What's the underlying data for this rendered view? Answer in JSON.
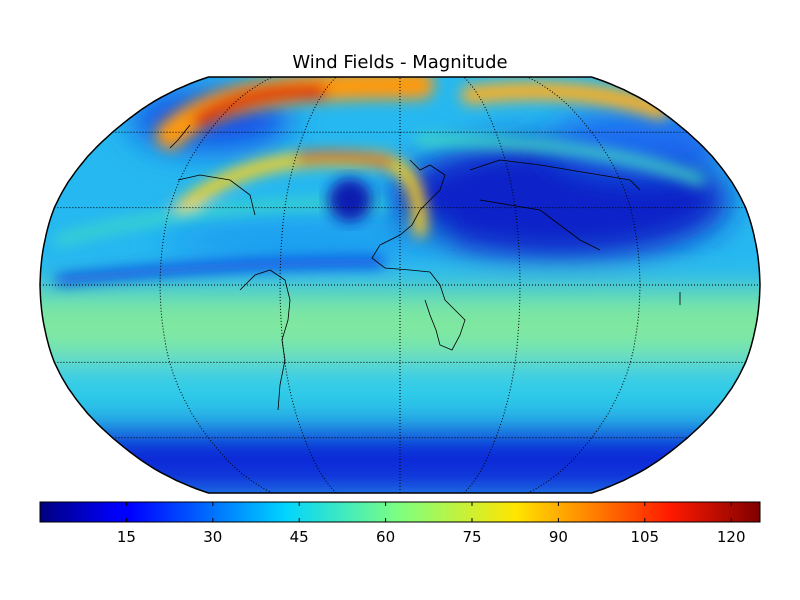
{
  "title": "Wind Fields - Magnitude",
  "map": {
    "projection": "robinson",
    "field": "wind magnitude",
    "graticule": {
      "parallels_deg": [
        -60,
        -30,
        0,
        30,
        60
      ],
      "meridians_deg": [
        -120,
        -60,
        0,
        60,
        120
      ],
      "style": "dotted"
    },
    "colormap": "jet"
  },
  "colorbar": {
    "orientation": "horizontal",
    "min": 0,
    "max": 125,
    "tick_values": [
      15,
      30,
      45,
      60,
      75,
      90,
      105,
      120
    ],
    "tick_labels": [
      "15",
      "30",
      "45",
      "60",
      "75",
      "90",
      "105",
      "120"
    ]
  },
  "colors": {
    "low": "#00007f",
    "mid": "#7fff7f",
    "high": "#7f0000"
  }
}
